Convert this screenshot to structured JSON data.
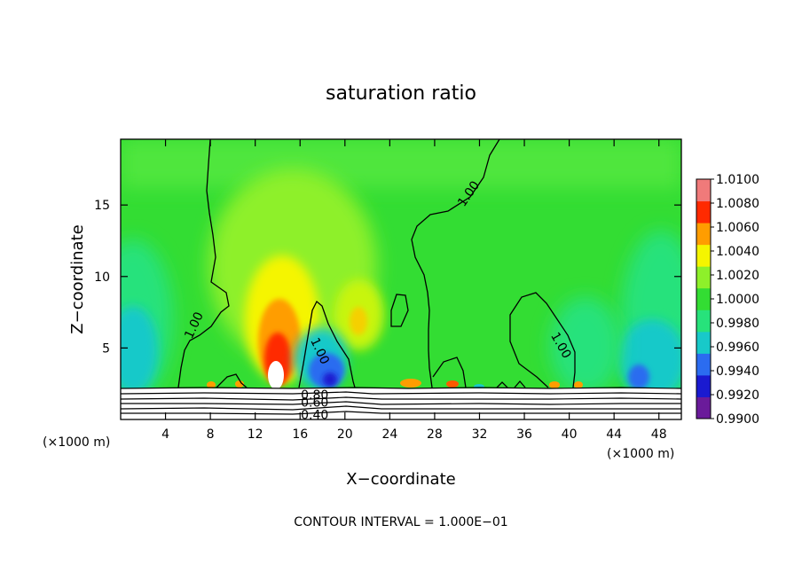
{
  "chart_data": {
    "type": "heatmap",
    "title": "saturation ratio",
    "xlabel": "X−coordinate",
    "ylabel": "Z−coordinate",
    "x_unit_left": "(×1000 m)",
    "x_unit_right": "(×1000 m)",
    "x_ticks": [
      "4",
      "8",
      "12",
      "16",
      "20",
      "24",
      "28",
      "32",
      "36",
      "40",
      "44",
      "48"
    ],
    "x_tick_values": [
      4,
      8,
      12,
      16,
      20,
      24,
      28,
      32,
      36,
      40,
      44,
      48
    ],
    "y_ticks": [
      "5",
      "10",
      "15"
    ],
    "y_tick_values": [
      5,
      10,
      15
    ],
    "xlim": [
      0,
      50
    ],
    "ylim": [
      0,
      19.6
    ],
    "footer": "CONTOUR INTERVAL = 1.000E−01",
    "colorbar": {
      "labels": [
        "1.0100",
        "1.0080",
        "1.0060",
        "1.0040",
        "1.0020",
        "1.0000",
        "0.9980",
        "0.9960",
        "0.9940",
        "0.9920",
        "0.9900"
      ],
      "min": 0.99,
      "max": 1.01,
      "colors": [
        "#6a1b9a",
        "#1a1ad0",
        "#2b6cf0",
        "#18c9c9",
        "#27e27b",
        "#33dd33",
        "#8ef02a",
        "#f5f500",
        "#ff9d00",
        "#ff2a00",
        "#f07a7a"
      ]
    },
    "contour_labels": [
      {
        "text": "1.00",
        "x": 6.5,
        "z": 6.6,
        "rotate": -65
      },
      {
        "text": "1.00",
        "x": 17.8,
        "z": 4.8,
        "rotate": 65
      },
      {
        "text": "1.00",
        "x": 31.0,
        "z": 15.8,
        "rotate": -55
      },
      {
        "text": "1.00",
        "x": 39.3,
        "z": 5.2,
        "rotate": 60
      },
      {
        "text": "0.80",
        "x": 17.3,
        "z": 1.75,
        "rotate": 0
      },
      {
        "text": "0.60",
        "x": 17.3,
        "z": 1.2,
        "rotate": 0
      },
      {
        "text": "0.40",
        "x": 17.3,
        "z": 0.35,
        "rotate": 0
      }
    ]
  }
}
